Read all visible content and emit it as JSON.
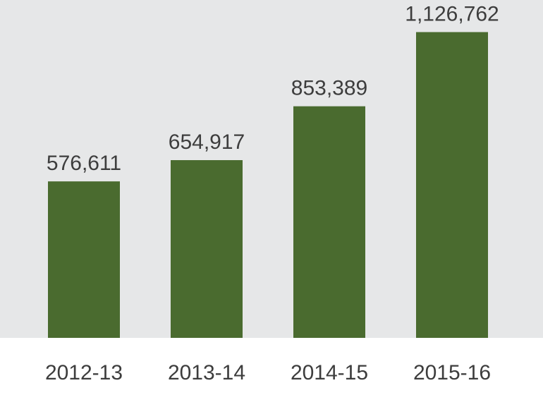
{
  "chart_data": {
    "type": "bar",
    "categories": [
      "2012-13",
      "2013-14",
      "2014-15",
      "2015-16"
    ],
    "values": [
      576611,
      654917,
      853389,
      1126762
    ],
    "value_labels": [
      "576,611",
      "654,917",
      "853,389",
      "1,126,762"
    ],
    "title": "",
    "xlabel": "",
    "ylabel": "",
    "ylim": [
      0,
      1245000
    ],
    "grid": false,
    "legend": "none",
    "colors": {
      "bar": "#4a6b2f",
      "plot_background": "#e6e7e8",
      "page_background": "#ffffff",
      "text": "#3d3d3d"
    }
  }
}
